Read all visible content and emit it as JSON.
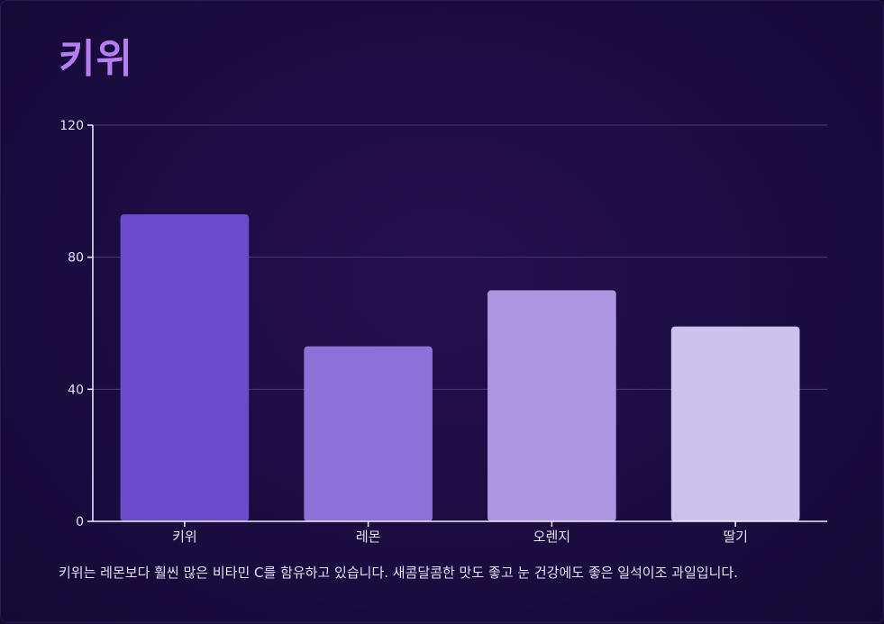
{
  "title": "키위",
  "caption": "키위는 레몬보다 훨씬 많은 비타민 C를 함유하고 있습니다. 새콤달콤한 맛도 좋고 눈 건강에도 좋은 일석이조 과일입니다.",
  "colors": {
    "title": "#b57ff0",
    "bars": [
      "#6a4bc9",
      "#8c72d8",
      "#ae97e2",
      "#cdc2ec"
    ],
    "grid": "#4a3a78",
    "axis": "#f2eefb",
    "tick_text": "#e7def7"
  },
  "chart_data": {
    "type": "bar",
    "categories": [
      "키위",
      "레몬",
      "오렌지",
      "딸기"
    ],
    "values": [
      93,
      53,
      70,
      59
    ],
    "title": "",
    "xlabel": "",
    "ylabel": "",
    "ylim": [
      0,
      120
    ],
    "yticks": [
      0,
      40,
      80,
      120
    ],
    "grid": true
  }
}
